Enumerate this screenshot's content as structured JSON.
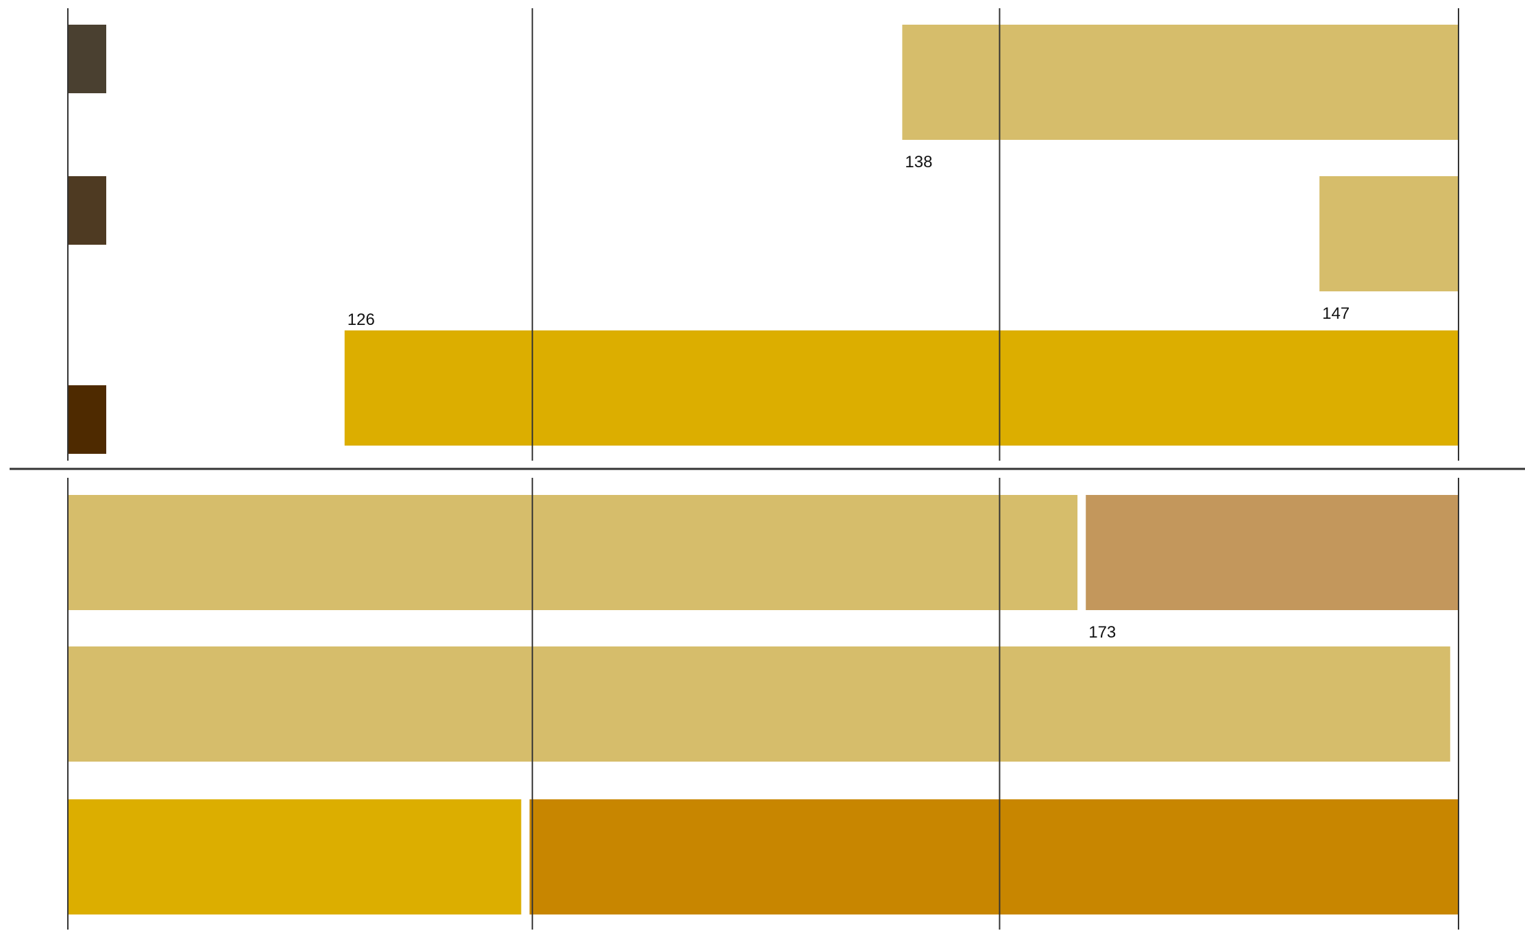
{
  "chart_data": {
    "type": "bar",
    "orientation": "horizontal",
    "grid": true,
    "colors": {
      "gridline": "#333333",
      "divider": "#333333",
      "swatch_dark_1": "#4a4030",
      "swatch_dark_2": "#4e3a22",
      "swatch_dark_3": "#4e2a00",
      "light_khaki": "#d6bd6b",
      "gold": "#dcae00",
      "tan": "#c3975c",
      "amber": "#c88600"
    },
    "panels": [
      {
        "rows": [
          {
            "swatch": "swatch_dark_1",
            "bars": [
              {
                "start": 0.6,
                "end": 1.0,
                "color": "light_khaki",
                "label": "138",
                "label_pos": "below-start"
              }
            ]
          },
          {
            "swatch": "swatch_dark_2",
            "bars": [
              {
                "start": 0.9,
                "end": 1.0,
                "color": "light_khaki",
                "label": "147",
                "label_pos": "below-start"
              }
            ]
          },
          {
            "swatch": "swatch_dark_3",
            "bars": [
              {
                "start": 0.199,
                "end": 1.0,
                "color": "gold",
                "label": "126",
                "label_pos": "above-start"
              }
            ]
          }
        ]
      },
      {
        "rows": [
          {
            "swatch": null,
            "bars": [
              {
                "start": 0.0,
                "end": 0.726,
                "color": "light_khaki",
                "label": "",
                "label_pos": ""
              },
              {
                "start": 0.732,
                "end": 1.0,
                "color": "tan",
                "label": "173",
                "label_pos": "below-start"
              }
            ]
          },
          {
            "swatch": null,
            "bars": [
              {
                "start": 0.0,
                "end": 0.994,
                "color": "light_khaki",
                "label": "",
                "label_pos": ""
              }
            ]
          },
          {
            "swatch": null,
            "bars": [
              {
                "start": 0.0,
                "end": 0.326,
                "color": "gold",
                "label": "",
                "label_pos": ""
              },
              {
                "start": 0.332,
                "end": 1.0,
                "color": "amber",
                "label": "",
                "label_pos": ""
              }
            ]
          }
        ]
      }
    ]
  }
}
